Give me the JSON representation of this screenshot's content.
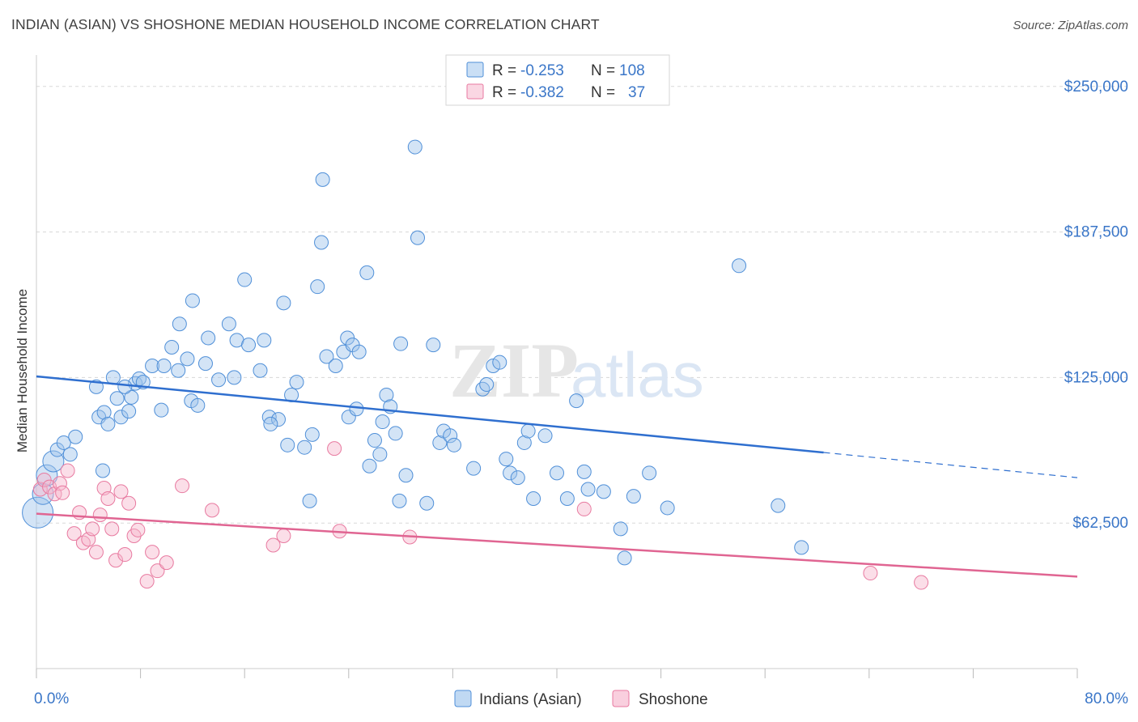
{
  "title": "INDIAN (ASIAN) VS SHOSHONE MEDIAN HOUSEHOLD INCOME CORRELATION CHART",
  "source": "Source: ZipAtlas.com",
  "watermark": {
    "zip": "ZIP",
    "atlas": "atlas"
  },
  "colors": {
    "blue": "#4f8fd8",
    "blue_fill": "rgba(158,196,236,0.45)",
    "blue_line": "#2f6fcf",
    "pink": "#e87aa0",
    "pink_fill": "rgba(246,182,204,0.45)",
    "pink_line": "#e06592",
    "tick_text": "#3a76c8",
    "grid": "#d8d8d8"
  },
  "legend": {
    "rows": [
      {
        "r_label": "R = ",
        "r_value": "-0.253",
        "n_label": "N = ",
        "n_value": "108"
      },
      {
        "r_label": "R = ",
        "r_value": "-0.382",
        "n_label": "N = ",
        "n_value": "37"
      }
    ]
  },
  "chart_data": {
    "type": "scatter",
    "xlabel": "",
    "ylabel": "Median Household Income",
    "xlim": [
      0,
      80
    ],
    "ylim": [
      0,
      260000
    ],
    "x_tick_labels": [
      {
        "value": 0,
        "label": "0.0%"
      },
      {
        "value": 80,
        "label": "80.0%"
      }
    ],
    "y_tick_labels": [
      {
        "value": 62500,
        "label": "$62,500"
      },
      {
        "value": 125000,
        "label": "$125,000"
      },
      {
        "value": 187500,
        "label": "$187,500"
      },
      {
        "value": 250000,
        "label": "$250,000"
      }
    ],
    "grid": true,
    "legend_position": "bottom",
    "series": [
      {
        "name": "Indians (Asian)",
        "color": "#4f8fd8",
        "r": -0.253,
        "n": 108,
        "trend": {
          "x0": 0,
          "y0": 125500,
          "x_solid_end": 60.5,
          "y_solid_end": 92800,
          "x1": 80,
          "y1": 82000
        },
        "points": [
          [
            0.1,
            67000
          ],
          [
            0.5,
            75000
          ],
          [
            0.8,
            83000
          ],
          [
            1.3,
            89000
          ],
          [
            1.6,
            94000
          ],
          [
            2.1,
            97000
          ],
          [
            2.6,
            92000
          ],
          [
            3.0,
            99500
          ],
          [
            4.8,
            108000
          ],
          [
            5.2,
            110000
          ],
          [
            5.5,
            105000
          ],
          [
            4.6,
            121000
          ],
          [
            5.9,
            125000
          ],
          [
            6.2,
            116000
          ],
          [
            6.5,
            108000
          ],
          [
            7.3,
            116500
          ],
          [
            7.6,
            122500
          ],
          [
            7.9,
            124500
          ],
          [
            7.1,
            110500
          ],
          [
            5.1,
            85000
          ],
          [
            8.9,
            130000
          ],
          [
            10.4,
            138000
          ],
          [
            11.6,
            133000
          ],
          [
            11.9,
            115000
          ],
          [
            12.4,
            113000
          ],
          [
            13.0,
            131000
          ],
          [
            14.0,
            124000
          ],
          [
            13.2,
            142000
          ],
          [
            14.8,
            148000
          ],
          [
            15.4,
            141000
          ],
          [
            16.3,
            139000
          ],
          [
            17.5,
            141000
          ],
          [
            17.2,
            128000
          ],
          [
            17.9,
            108000
          ],
          [
            18.6,
            107000
          ],
          [
            19.3,
            96000
          ],
          [
            19.6,
            117500
          ],
          [
            20.0,
            123000
          ],
          [
            20.6,
            95000
          ],
          [
            21.2,
            100500
          ],
          [
            21.6,
            164000
          ],
          [
            21.9,
            183000
          ],
          [
            21.0,
            72000
          ],
          [
            22.3,
            134000
          ],
          [
            23.0,
            130000
          ],
          [
            23.6,
            136000
          ],
          [
            23.9,
            142000
          ],
          [
            24.3,
            139000
          ],
          [
            24.0,
            108000
          ],
          [
            24.6,
            111500
          ],
          [
            25.4,
            170000
          ],
          [
            25.6,
            87000
          ],
          [
            26.0,
            98000
          ],
          [
            26.6,
            106000
          ],
          [
            26.9,
            117500
          ],
          [
            27.2,
            112500
          ],
          [
            27.6,
            101000
          ],
          [
            27.9,
            72000
          ],
          [
            28.0,
            139500
          ],
          [
            28.4,
            83000
          ],
          [
            29.1,
            224000
          ],
          [
            29.3,
            185000
          ],
          [
            30.0,
            71000
          ],
          [
            31.0,
            97000
          ],
          [
            31.3,
            102000
          ],
          [
            31.8,
            100000
          ],
          [
            32.1,
            96000
          ],
          [
            33.6,
            86000
          ],
          [
            34.3,
            120000
          ],
          [
            34.6,
            122000
          ],
          [
            35.1,
            130000
          ],
          [
            35.6,
            131500
          ],
          [
            36.1,
            90000
          ],
          [
            36.4,
            84000
          ],
          [
            37.0,
            82000
          ],
          [
            37.5,
            97000
          ],
          [
            37.8,
            102000
          ],
          [
            38.2,
            73000
          ],
          [
            39.1,
            100000
          ],
          [
            40.0,
            84000
          ],
          [
            40.8,
            73000
          ],
          [
            41.5,
            115000
          ],
          [
            42.1,
            84500
          ],
          [
            42.4,
            77000
          ],
          [
            43.6,
            76000
          ],
          [
            44.9,
            60000
          ],
          [
            45.2,
            47500
          ],
          [
            45.9,
            74000
          ],
          [
            47.1,
            84000
          ],
          [
            48.5,
            69000
          ],
          [
            54.0,
            173000
          ],
          [
            57.0,
            70000
          ],
          [
            58.8,
            52000
          ],
          [
            9.6,
            111000
          ],
          [
            10.9,
            128000
          ],
          [
            12.0,
            158000
          ],
          [
            15.2,
            125000
          ],
          [
            16.0,
            167000
          ],
          [
            18.0,
            105000
          ],
          [
            19.0,
            157000
          ],
          [
            22.0,
            210000
          ],
          [
            24.8,
            136000
          ],
          [
            26.4,
            92000
          ],
          [
            30.5,
            139000
          ],
          [
            11.0,
            148000
          ],
          [
            9.8,
            130000
          ],
          [
            8.2,
            123000
          ],
          [
            6.8,
            121000
          ]
        ]
      },
      {
        "name": "Shoshone",
        "color": "#e87aa0",
        "r": -0.382,
        "n": 37,
        "trend": {
          "x0": 0,
          "y0": 66500,
          "x1": 80,
          "y1": 39500
        },
        "points": [
          [
            0.3,
            77000
          ],
          [
            0.6,
            81000
          ],
          [
            1.0,
            78000
          ],
          [
            1.4,
            75000
          ],
          [
            1.8,
            79500
          ],
          [
            2.4,
            85000
          ],
          [
            2.9,
            58000
          ],
          [
            3.3,
            67000
          ],
          [
            3.6,
            54000
          ],
          [
            4.0,
            55500
          ],
          [
            4.3,
            60000
          ],
          [
            4.6,
            50000
          ],
          [
            4.9,
            66000
          ],
          [
            5.2,
            77500
          ],
          [
            5.5,
            73000
          ],
          [
            5.8,
            60000
          ],
          [
            6.1,
            46500
          ],
          [
            6.5,
            76000
          ],
          [
            6.8,
            49000
          ],
          [
            7.1,
            71000
          ],
          [
            7.5,
            57000
          ],
          [
            7.8,
            59500
          ],
          [
            8.5,
            37500
          ],
          [
            8.9,
            50000
          ],
          [
            9.3,
            42000
          ],
          [
            10.0,
            45500
          ],
          [
            11.2,
            78500
          ],
          [
            13.5,
            68000
          ],
          [
            18.2,
            53000
          ],
          [
            19.0,
            57000
          ],
          [
            22.9,
            94500
          ],
          [
            23.3,
            59000
          ],
          [
            28.7,
            56500
          ],
          [
            42.1,
            68500
          ],
          [
            64.1,
            41000
          ],
          [
            68.0,
            37000
          ],
          [
            2.0,
            75500
          ]
        ]
      }
    ]
  }
}
